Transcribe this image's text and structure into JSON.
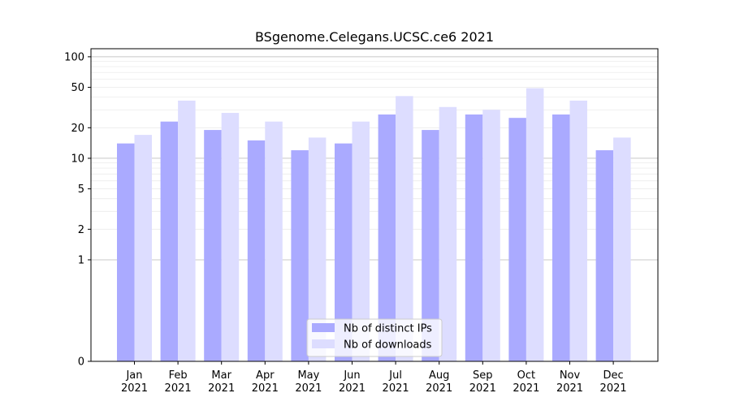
{
  "chart_data": {
    "type": "bar",
    "title": "BSgenome.Celegans.UCSC.ce6 2021",
    "xlabel": "",
    "ylabel": "",
    "y_scale": "symlog",
    "ylim": [
      0,
      120
    ],
    "yticks": [
      0,
      1,
      2,
      5,
      10,
      20,
      50,
      100
    ],
    "grid": "y-major-and-minor",
    "legend_position": "bottom-center",
    "categories": [
      [
        "Jan",
        "2021"
      ],
      [
        "Feb",
        "2021"
      ],
      [
        "Mar",
        "2021"
      ],
      [
        "Apr",
        "2021"
      ],
      [
        "May",
        "2021"
      ],
      [
        "Jun",
        "2021"
      ],
      [
        "Jul",
        "2021"
      ],
      [
        "Aug",
        "2021"
      ],
      [
        "Sep",
        "2021"
      ],
      [
        "Oct",
        "2021"
      ],
      [
        "Nov",
        "2021"
      ],
      [
        "Dec",
        "2021"
      ]
    ],
    "series": [
      {
        "name": "Nb of distinct IPs",
        "color": "#aaaaff",
        "values": [
          14,
          23,
          19,
          15,
          12,
          14,
          27,
          19,
          27,
          25,
          27,
          12
        ]
      },
      {
        "name": "Nb of downloads",
        "color": "#ddddff",
        "values": [
          17,
          37,
          28,
          23,
          16,
          23,
          41,
          32,
          30,
          49,
          37,
          16
        ]
      }
    ]
  }
}
